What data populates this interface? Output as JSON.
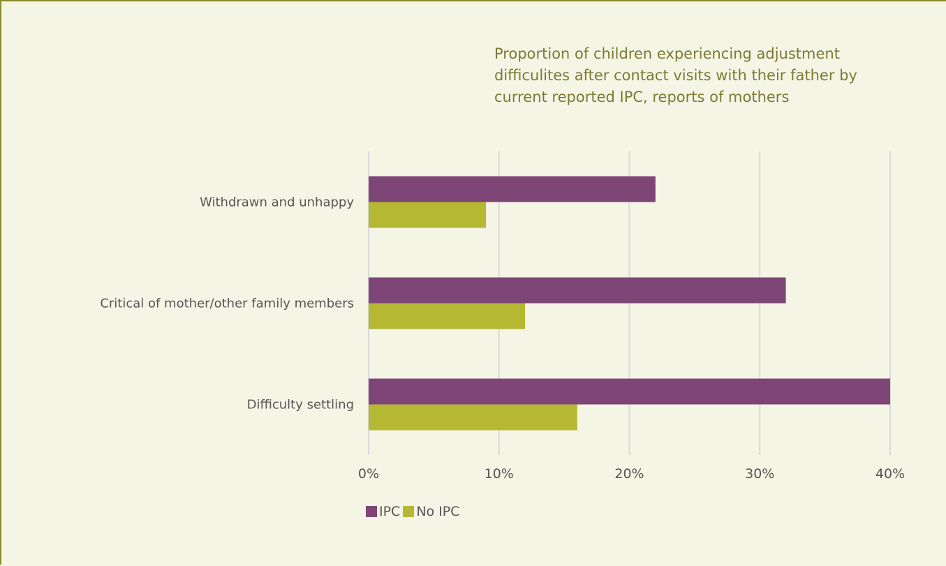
{
  "chart_data": {
    "type": "bar",
    "orientation": "horizontal",
    "title": "Proportion of children experiencing adjustment\ndifficulites after contact visits with their father by\ncurrent reported IPC, reports of mothers",
    "categories": [
      "Withdrawn and unhappy",
      "Critical of mother/other family members",
      "Difficulty settling"
    ],
    "series": [
      {
        "name": "IPC",
        "values": [
          22,
          32,
          40
        ],
        "color": "#7e4677"
      },
      {
        "name": "No IPC",
        "values": [
          9,
          12,
          16
        ],
        "color": "#b5b832"
      }
    ],
    "xlim": [
      0,
      40
    ],
    "xticks": [
      0,
      10,
      20,
      30,
      40
    ],
    "xtick_labels": [
      "0%",
      "10%",
      "20%",
      "30%",
      "40%"
    ],
    "xlabel": "",
    "ylabel": "",
    "grid": "vertical",
    "legend_position": "bottom-left"
  }
}
